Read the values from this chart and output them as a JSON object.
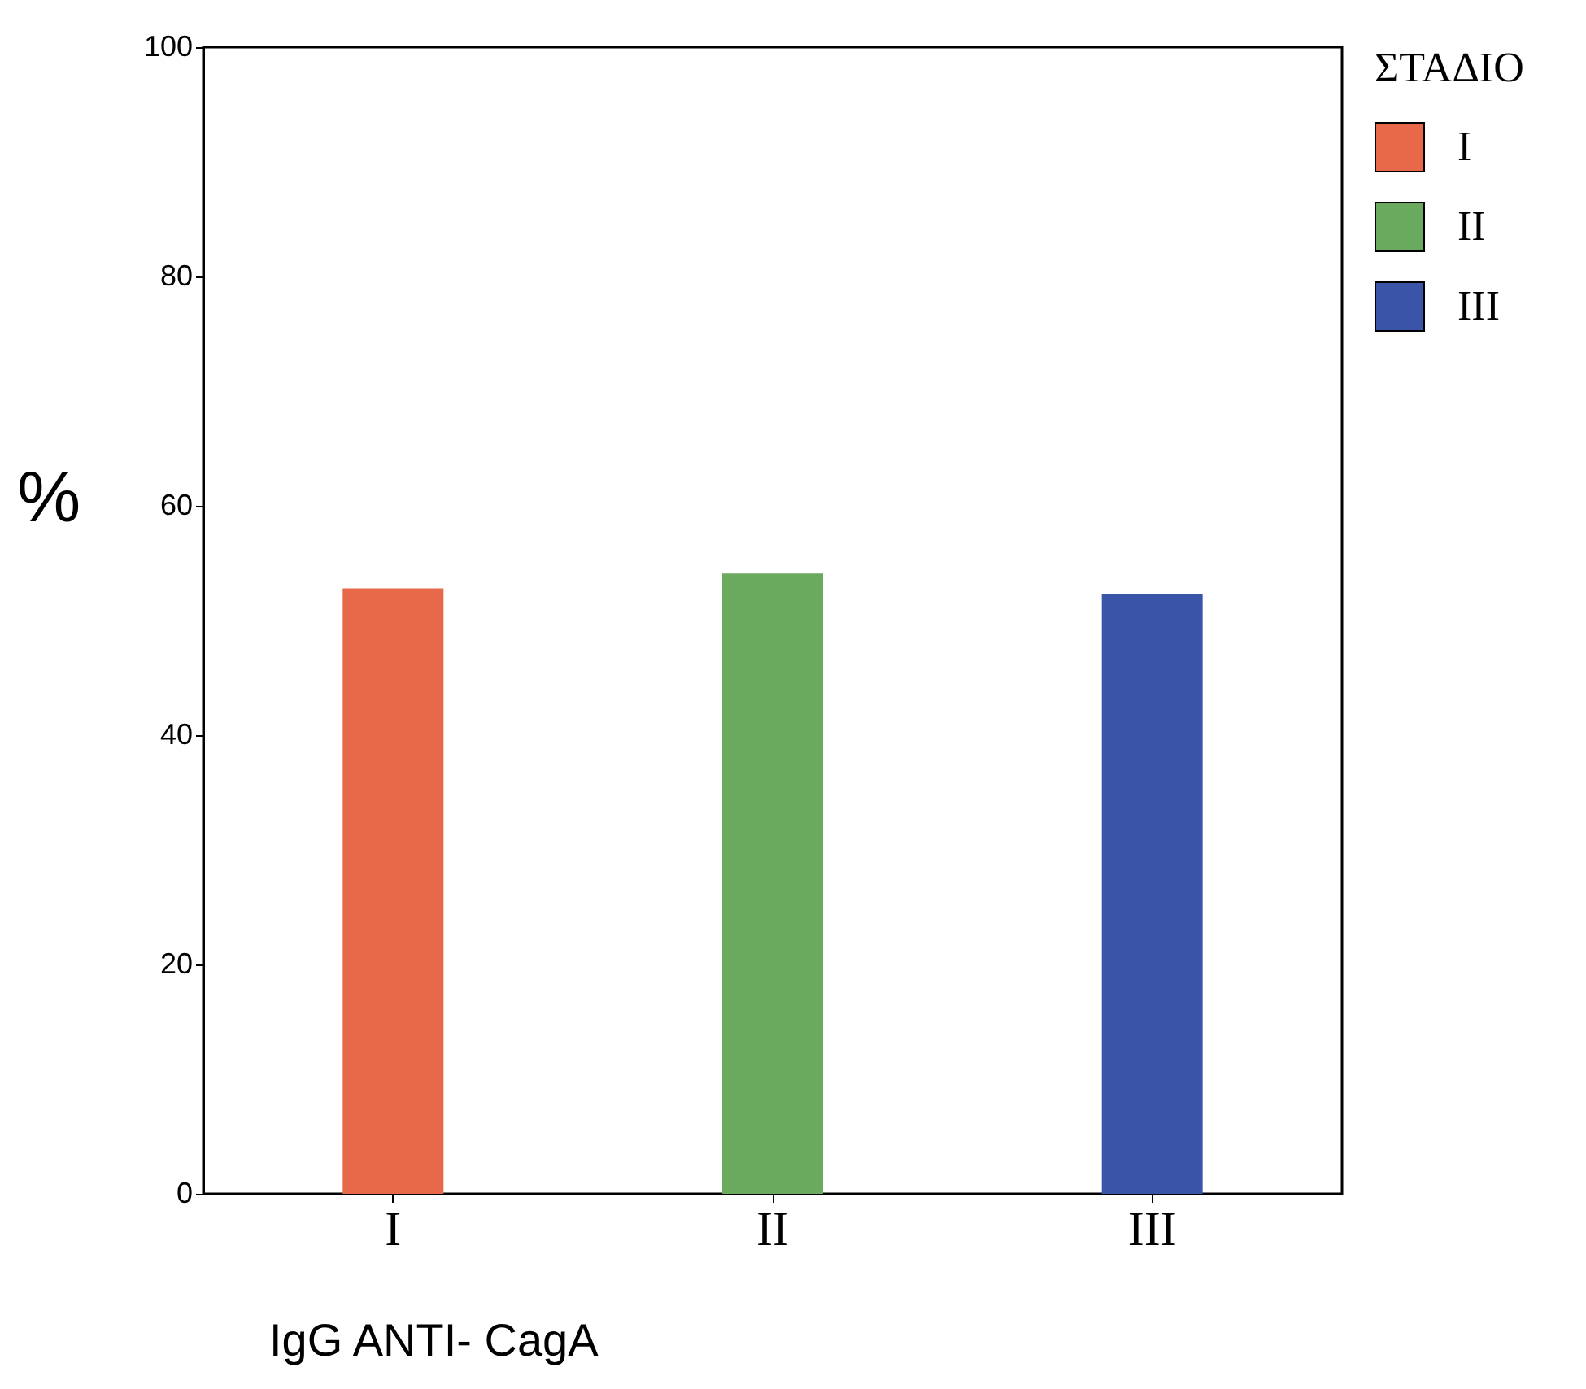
{
  "chart_data": {
    "type": "bar",
    "xlabel": "IgG ANTI- CagA",
    "ylabel": "%",
    "legend_title": "ΣΤΑΔΙΟ",
    "categories": [
      "I",
      "II",
      "III"
    ],
    "series": [
      {
        "name": "I",
        "color": "#e8694a",
        "values": [
          52.8,
          null,
          null
        ]
      },
      {
        "name": "II",
        "color": "#6aaa5e",
        "values": [
          null,
          54.1,
          null
        ]
      },
      {
        "name": "III",
        "color": "#3a55a8",
        "values": [
          null,
          null,
          52.3
        ]
      }
    ],
    "ylim": [
      0,
      100
    ],
    "yticks": [
      0,
      20,
      40,
      60,
      80,
      100
    ],
    "grid": false,
    "legend": "right"
  }
}
